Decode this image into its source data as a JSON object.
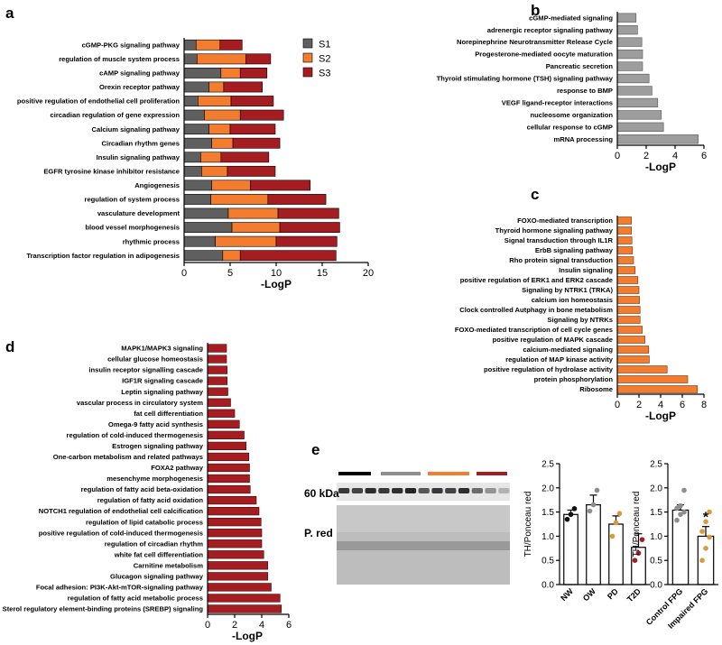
{
  "colors": {
    "s1": "#5f5f5f",
    "s2": "#f47c2f",
    "s3": "#a51d21",
    "b": "#9d9d9d",
    "c": "#f47c2f",
    "d": "#a51d21",
    "NW": "#111111",
    "OW": "#8e8e8e",
    "PD": "#d89b3c",
    "T2D": "#a51d21",
    "FPGc": "#8e8e8e",
    "FPGi": "#d89b3c"
  },
  "panels": {
    "a": "a",
    "b": "b",
    "c": "c",
    "d": "d",
    "e": "e"
  },
  "chart_data": [
    {
      "panel": "a",
      "type": "bar",
      "orientation": "horizontal",
      "stacked": true,
      "categories": [
        "cGMP-PKG signaling pathway",
        "regulation of muscle system process",
        "cAMP signaling pathway",
        "Orexin receptor pathway",
        "positive regulation of endothelial cell proliferation",
        "circadian regulation of gene expression",
        "Calcium signaling pathway",
        "Circadian rhythm genes",
        "Insulin signaling pathway",
        "EGFR tyrosine kinase inhibitor resistance",
        "Angiogenesis",
        "regulation of system process",
        "vasculature development",
        "blood vessel morphogenesis",
        "rhythmic process",
        "Transcription factor regulation in adipogenesis"
      ],
      "series": [
        {
          "name": "S1",
          "values": [
            1.3,
            1.4,
            4.0,
            2.7,
            1.5,
            2.2,
            2.7,
            3.0,
            1.8,
            1.9,
            3.0,
            2.9,
            4.8,
            5.2,
            3.4,
            4.2
          ]
        },
        {
          "name": "S2",
          "values": [
            2.6,
            5.3,
            2.1,
            1.6,
            3.6,
            3.9,
            2.3,
            2.3,
            2.2,
            2.8,
            4.2,
            6.2,
            5.4,
            5.2,
            6.6,
            1.9
          ]
        },
        {
          "name": "S3",
          "values": [
            2.4,
            2.7,
            2.9,
            4.2,
            4.6,
            4.7,
            4.9,
            5.1,
            5.2,
            5.2,
            6.5,
            6.3,
            6.6,
            6.5,
            6.6,
            10.4
          ]
        }
      ],
      "xlabel": "-LogP",
      "xlim": [
        0,
        20
      ],
      "xticks": [
        0,
        5,
        10,
        15,
        20
      ],
      "legend": "top-right"
    },
    {
      "panel": "b",
      "type": "bar",
      "orientation": "horizontal",
      "categories": [
        "cGMP-mediated signaling",
        "adrenergic receptor signaling pathway",
        "Norepinephrine Neurotransmitter Release Cycle",
        "Progesterone-mediated oocyte maturation",
        "Pancreatic secretion",
        "Thyroid stimulating hormone (TSH) signaling pathway",
        "response to BMP",
        "VEGF ligand-receptor interactions",
        "nucleosome organization",
        "cellular response to cGMP",
        "mRNA processing"
      ],
      "values": [
        1.3,
        1.4,
        1.7,
        1.75,
        1.75,
        2.2,
        2.4,
        2.8,
        3.05,
        3.2,
        5.6
      ],
      "xlabel": "-LogP",
      "xlim": [
        0,
        6
      ],
      "xticks": [
        0,
        2,
        4,
        6
      ]
    },
    {
      "panel": "c",
      "type": "bar",
      "orientation": "horizontal",
      "categories": [
        "FOXO-mediated transcription",
        "Thyroid hormone signaling pathway",
        "Signal transduction through IL1R",
        "ErbB signaling pathway",
        "Rho protein signal transduction",
        "Insulin signaling",
        "positive regulation of ERK1 and ERK2 cascade",
        "Signaling by NTRK1 (TRKA)",
        "calcium ion homeostasis",
        "Clock controlled Autphagy in bone metabolism",
        "Signaling by NTRKs",
        "FOXO-mediated transcription of cell cycle genes",
        "positive regulation of MAPK cascade",
        "calcium-mediated signaling",
        "regulation of MAP kinase activity",
        "positive regulation of hydrolase activity",
        "protein phosphorylation",
        "Ribosome"
      ],
      "values": [
        1.3,
        1.3,
        1.35,
        1.4,
        1.5,
        1.65,
        1.9,
        2.0,
        2.05,
        2.1,
        2.1,
        2.3,
        2.55,
        2.9,
        2.95,
        4.6,
        6.5,
        7.4
      ],
      "xlabel": "-LogP",
      "xlim": [
        0,
        8
      ],
      "xticks": [
        0,
        2,
        4,
        6,
        8
      ]
    },
    {
      "panel": "d",
      "type": "bar",
      "orientation": "horizontal",
      "categories": [
        "MAPK1/MAPK3 signaling",
        "cellular glucose homeostasis",
        "insulin receptor signalling cascade",
        "IGF1R signaling cascade",
        "Leptin signaling pathway",
        "vascular process in circulatory system",
        "fat cell differentiation",
        "Omega-9 fatty acid synthesis",
        "regulation of cold-induced thermogenesis",
        "Estrogen signaling pathway",
        "One-carbon metabolism and related pathways",
        "FOXA2 pathway",
        "mesenchyme morphogenesis",
        "regulation of fatty acid beta-oxidation",
        "regulation of fatty acid oxidation",
        "NOTCH1 regulation of endothelial cell calcification",
        "regulation of lipid catabolic process",
        "positive regulation of cold-induced thermogenesis",
        "regulation of circadian rhythm",
        "white fat cell differentiation",
        "Carnitine metabolism",
        "Glucagon signaling pathway",
        "Focal adhesion: PI3K-Akt-mTOR-signaling pathway",
        "regulation of fatty acid metabolic process",
        "Sterol regulatory element-binding proteins (SREBP) signaling"
      ],
      "values": [
        1.4,
        1.4,
        1.45,
        1.45,
        1.5,
        1.7,
        2.0,
        2.35,
        2.7,
        2.85,
        3.05,
        3.1,
        3.1,
        3.15,
        3.6,
        3.8,
        3.95,
        4.0,
        4.0,
        4.15,
        4.45,
        4.45,
        4.7,
        5.35,
        5.45
      ],
      "xlabel": "-LogP",
      "xlim": [
        0,
        6
      ],
      "xticks": [
        0,
        2,
        4,
        6
      ]
    },
    {
      "panel": "e1",
      "type": "bar",
      "categories": [
        "NW",
        "OW",
        "PD",
        "T2D"
      ],
      "values": [
        1.45,
        1.65,
        1.25,
        0.77
      ],
      "errors": [
        0.09,
        0.2,
        0.17,
        0.28
      ],
      "points": [
        [
          1.35,
          1.45,
          1.57
        ],
        [
          1.52,
          1.65,
          1.95
        ],
        [
          1.0,
          1.28,
          1.47
        ],
        [
          0.5,
          0.65,
          0.93
        ]
      ],
      "ylabel": "TH/Ponceau red",
      "ylim": [
        0,
        2.5
      ],
      "yticks": [
        0.0,
        0.5,
        1.0,
        1.5,
        2.0,
        2.5
      ]
    },
    {
      "panel": "e2",
      "type": "bar",
      "categories": [
        "Control FPG",
        "Impaired FPG"
      ],
      "values": [
        1.54,
        1.0
      ],
      "errors": [
        0.11,
        0.2
      ],
      "points": [
        [
          1.33,
          1.45,
          1.5,
          1.58,
          1.63,
          1.95
        ],
        [
          0.5,
          0.75,
          0.98,
          1.1,
          1.3,
          1.5
        ]
      ],
      "annotation": "*",
      "ylabel": "TH/Ponceau red",
      "ylim": [
        0,
        2.5
      ],
      "yticks": [
        0.0,
        0.5,
        1.0,
        1.5,
        2.0,
        2.5
      ]
    }
  ],
  "blot": {
    "band_label": "60 kDa",
    "stain_label": "P. red"
  }
}
